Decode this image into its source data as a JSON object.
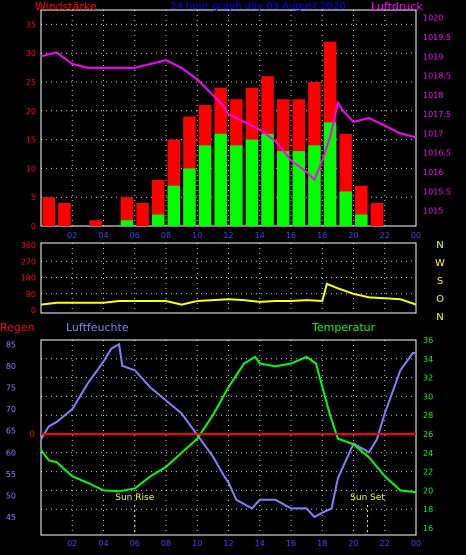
{
  "header": {
    "left_title": "Windstärke",
    "center_title": "24 hour graph day  09 August  2020",
    "right_title": "Luftdruck"
  },
  "colors": {
    "wind_gust": "#ff0000",
    "wind_avg": "#00ff00",
    "wind_min": "#000000",
    "pressure": "#ff00ff",
    "direction": "#ffff00",
    "rain": "#ff0000",
    "humidity": "#8080ff",
    "temperature": "#00ff00",
    "axis_left": "#ff0000",
    "axis_right": "#ff00ff",
    "direction_axis": "#ffff00",
    "humidity_axis": "#8080ff",
    "temperature_axis": "#00ff00",
    "grid": "#ffffff"
  },
  "chart_data": [
    {
      "type": "bar",
      "title": "24 hour graph day  09 August  2020",
      "ylabel": "Windstärke",
      "y2label": "Luftdruck",
      "xlim": [
        0,
        24
      ],
      "ylim": [
        0,
        37.5
      ],
      "y2lim": [
        1014.6,
        1020.2
      ],
      "x_ticks": [
        "02",
        "04",
        "06",
        "08",
        "10",
        "12",
        "14",
        "16",
        "18",
        "20",
        "22",
        "00"
      ],
      "y_ticks": [
        0,
        5,
        10,
        15,
        20,
        25,
        30,
        35
      ],
      "y2_ticks": [
        "1015",
        "1015.5",
        "1016",
        "1016.5",
        "1017",
        "1017.5",
        "1018",
        "1018.5",
        "1019",
        "1019.5",
        "1020"
      ],
      "grid": true,
      "wind_hourly": {
        "hours": [
          0.5,
          1.5,
          2.5,
          3.5,
          4.5,
          5.5,
          6.5,
          7.5,
          8.5,
          9.5,
          10.5,
          11.5,
          12.5,
          13.5,
          14.5,
          15.5,
          16.5,
          17.5,
          18.5,
          19.5,
          20.5,
          21.5,
          22.5,
          23.5
        ],
        "gust": [
          5,
          4,
          0,
          1,
          0,
          5,
          4,
          8,
          15,
          19,
          21,
          24,
          22,
          24,
          26,
          22,
          22,
          25,
          32,
          16,
          7,
          4,
          0,
          0
        ],
        "average": [
          0,
          0,
          0,
          0,
          0,
          1,
          0,
          2,
          7,
          10,
          14,
          16,
          14,
          15,
          16,
          13,
          13,
          14,
          18,
          6,
          2,
          0,
          0,
          0
        ]
      },
      "pressure": {
        "x": [
          0,
          1,
          2,
          3,
          4,
          5,
          6,
          7,
          8,
          9,
          10,
          11,
          11.7,
          12,
          13,
          14,
          15,
          16,
          17,
          17.5,
          18,
          18.5,
          19,
          19.3,
          20,
          21,
          22,
          23,
          24
        ],
        "y": [
          1019.0,
          1019.1,
          1018.8,
          1018.7,
          1018.7,
          1018.7,
          1018.7,
          1018.8,
          1018.9,
          1018.7,
          1018.4,
          1018.0,
          1017.7,
          1017.5,
          1017.3,
          1017.1,
          1016.8,
          1016.3,
          1016.0,
          1015.8,
          1016.3,
          1016.9,
          1017.8,
          1017.6,
          1017.3,
          1017.4,
          1017.2,
          1017.0,
          1016.9
        ]
      }
    },
    {
      "type": "line",
      "ylabel_letters": [
        "N",
        "W",
        "S",
        "O",
        "N"
      ],
      "xlim": [
        0,
        24
      ],
      "ylim": [
        0,
        360
      ],
      "y_ticks": [
        0,
        90,
        180,
        270,
        360
      ],
      "grid": true,
      "series": [
        {
          "x": [
            0,
            1,
            2,
            3,
            4,
            5,
            6,
            7,
            8,
            9,
            10,
            11,
            12,
            13,
            14,
            15,
            16,
            17,
            18,
            18.3,
            19,
            20,
            21,
            22,
            23,
            24
          ],
          "y": [
            30,
            40,
            40,
            40,
            40,
            50,
            50,
            50,
            50,
            30,
            50,
            55,
            60,
            55,
            45,
            50,
            50,
            55,
            50,
            145,
            120,
            90,
            70,
            65,
            60,
            30
          ]
        }
      ]
    },
    {
      "type": "line",
      "title_left": "Regen",
      "title_humidity": "Luftfeuchte",
      "title_temperature": "Temperatur",
      "xlim": [
        0,
        24
      ],
      "rain_ylim": [
        0,
        1
      ],
      "humidity_ylim": [
        42,
        86
      ],
      "temperature_ylim": [
        16,
        36
      ],
      "humidity_ticks": [
        45,
        50,
        55,
        60,
        65,
        70,
        75,
        80,
        85
      ],
      "temperature_ticks": [
        16,
        18,
        20,
        22,
        24,
        26,
        28,
        30,
        32,
        34,
        36
      ],
      "rain_tick": "0",
      "x_ticks": [
        "02",
        "04",
        "06",
        "08",
        "10",
        "12",
        "14",
        "16",
        "18",
        "20",
        "22",
        "00"
      ],
      "grid": true,
      "annotations": [
        {
          "text": "Sun Rise",
          "x": 6.0
        },
        {
          "text": "Sun Set",
          "x": 20.9
        }
      ],
      "series": [
        {
          "name": "Luftfeuchte",
          "x": [
            0,
            0.5,
            1,
            2,
            3,
            4,
            4.5,
            5,
            5.2,
            6,
            7,
            8,
            9,
            10,
            11,
            11.8,
            12,
            12.5,
            13,
            13.5,
            14,
            15,
            16,
            17,
            17.5,
            18,
            18.6,
            19,
            19.5,
            20,
            21,
            21.5,
            22,
            23,
            23.8,
            24
          ],
          "y": [
            63,
            66,
            67,
            70,
            76,
            81,
            84,
            85,
            80,
            79,
            75,
            72,
            69,
            64,
            59,
            54,
            53,
            49,
            48,
            47,
            49,
            49,
            47,
            47,
            45,
            46,
            47,
            54,
            58,
            62,
            60,
            63,
            69,
            79,
            83,
            83
          ]
        },
        {
          "name": "Temperatur",
          "x": [
            0,
            0.5,
            1,
            2,
            3,
            4,
            5,
            6,
            7,
            8,
            9,
            10,
            11,
            12,
            13,
            13.7,
            14,
            15,
            16,
            17,
            17.6,
            18,
            18.5,
            19,
            20,
            21,
            22,
            23,
            24
          ],
          "y": [
            24.3,
            23.2,
            23.0,
            21.5,
            20.8,
            20.0,
            19.9,
            20.2,
            21.5,
            22.5,
            24.0,
            25.5,
            28.0,
            31.0,
            33.5,
            34.2,
            33.5,
            33.2,
            33.5,
            34.2,
            33.5,
            31.0,
            28.0,
            25.5,
            24.9,
            23.5,
            21.5,
            20.0,
            19.8
          ]
        },
        {
          "name": "Regen",
          "x": [
            0,
            24
          ],
          "y": [
            0,
            0
          ]
        }
      ]
    }
  ]
}
